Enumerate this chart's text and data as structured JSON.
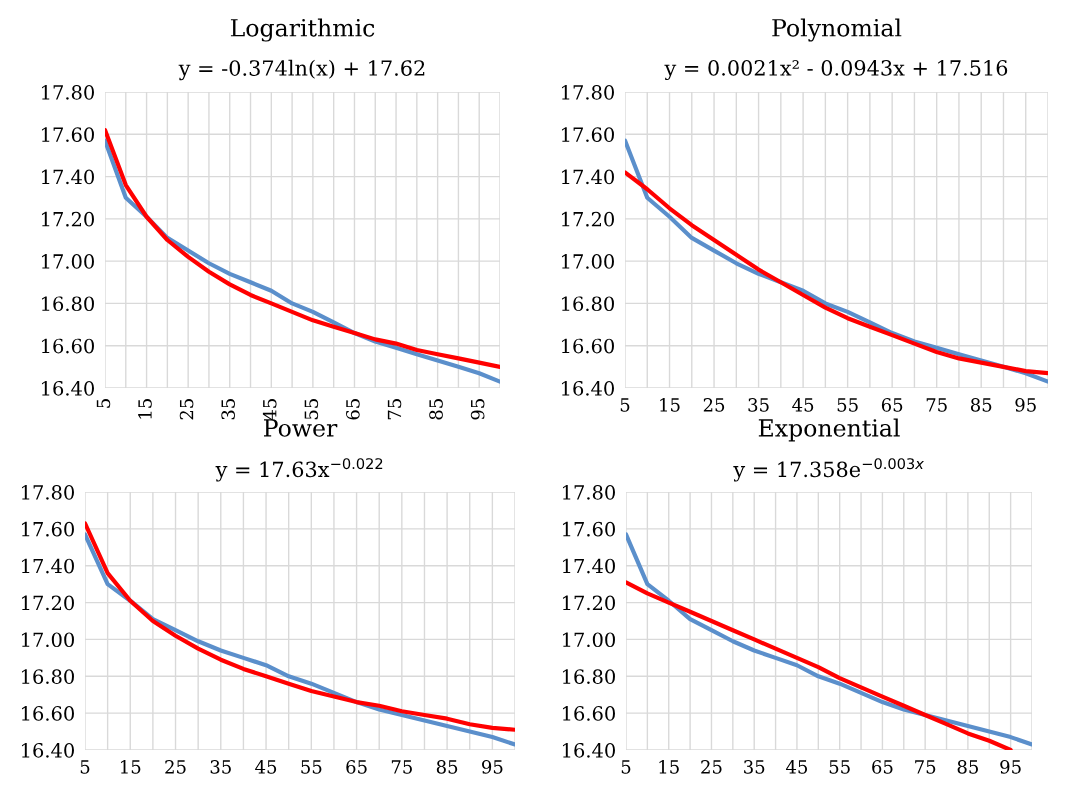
{
  "chart_data": [
    {
      "type": "line",
      "title": "Logarithmic",
      "subtitle": "y = -0.374ln(x) + 17.62",
      "categories": [
        "5",
        null,
        "15",
        null,
        "25",
        null,
        "35",
        null,
        "45",
        null,
        "55",
        null,
        "65",
        null,
        "75",
        null,
        "85",
        null,
        "95",
        null
      ],
      "ylim": [
        16.4,
        17.8
      ],
      "yticks": [
        {
          "value": 16.4,
          "label": "16.40"
        },
        {
          "value": 16.6,
          "label": "16.60"
        },
        {
          "value": 16.8,
          "label": "16.80"
        },
        {
          "value": 17.0,
          "label": "17.00"
        },
        {
          "value": 17.2,
          "label": "17.20"
        },
        {
          "value": 17.4,
          "label": "17.40"
        },
        {
          "value": 17.6,
          "label": "17.60"
        },
        {
          "value": 17.8,
          "label": "17.80"
        }
      ],
      "grid": true,
      "series": [
        {
          "color": "#5b8fcb",
          "values": [
            17.57,
            17.3,
            17.21,
            17.11,
            17.05,
            16.99,
            16.94,
            16.9,
            16.86,
            16.8,
            16.76,
            16.71,
            16.66,
            16.62,
            16.59,
            16.56,
            16.53,
            16.5,
            16.47,
            16.43
          ]
        },
        {
          "color": "#ff0000",
          "values": [
            17.62,
            17.36,
            17.21,
            17.1,
            17.02,
            16.95,
            16.89,
            16.84,
            16.8,
            16.76,
            16.72,
            16.69,
            16.66,
            16.63,
            16.61,
            16.58,
            16.56,
            16.54,
            16.52,
            16.5
          ]
        }
      ]
    },
    {
      "type": "line",
      "title": "Polynomial",
      "subtitle": "y = 0.0021x² - 0.0943x + 17.516",
      "categories": [
        "5",
        null,
        "15",
        null,
        "25",
        null,
        "35",
        null,
        "45",
        null,
        "55",
        null,
        "65",
        null,
        "75",
        null,
        "85",
        null,
        "95",
        null
      ],
      "ylim": [
        16.4,
        17.8
      ],
      "yticks": [
        {
          "value": 16.4,
          "label": "16.40"
        },
        {
          "value": 16.6,
          "label": "16.60"
        },
        {
          "value": 16.8,
          "label": "16.80"
        },
        {
          "value": 17.0,
          "label": "17.00"
        },
        {
          "value": 17.2,
          "label": "17.20"
        },
        {
          "value": 17.4,
          "label": "17.40"
        },
        {
          "value": 17.6,
          "label": "17.60"
        },
        {
          "value": 17.8,
          "label": "17.80"
        }
      ],
      "grid": true,
      "series": [
        {
          "color": "#5b8fcb",
          "values": [
            17.57,
            17.3,
            17.21,
            17.11,
            17.05,
            16.99,
            16.94,
            16.9,
            16.86,
            16.8,
            16.76,
            16.71,
            16.66,
            16.62,
            16.59,
            16.56,
            16.53,
            16.5,
            16.47,
            16.43
          ]
        },
        {
          "color": "#ff0000",
          "values": [
            17.42,
            17.34,
            17.25,
            17.17,
            17.1,
            17.03,
            16.96,
            16.9,
            16.84,
            16.78,
            16.73,
            16.69,
            16.65,
            16.61,
            16.57,
            16.54,
            16.52,
            16.5,
            16.48,
            16.47
          ]
        }
      ]
    },
    {
      "type": "line",
      "title": "Power",
      "subtitle": "y = 17.63x$^{−0.022}$",
      "categories": [
        "5",
        null,
        "15",
        null,
        "25",
        null,
        "35",
        null,
        "45",
        null,
        "55",
        null,
        "65",
        null,
        "75",
        null,
        "85",
        null,
        "95",
        null
      ],
      "ylim": [
        16.4,
        17.8
      ],
      "yticks": [
        {
          "value": 16.4,
          "label": "16.40"
        },
        {
          "value": 16.6,
          "label": "16.60"
        },
        {
          "value": 16.8,
          "label": "16.80"
        },
        {
          "value": 17.0,
          "label": "17.00"
        },
        {
          "value": 17.2,
          "label": "17.20"
        },
        {
          "value": 17.4,
          "label": "17.40"
        },
        {
          "value": 17.6,
          "label": "17.60"
        },
        {
          "value": 17.8,
          "label": "17.80"
        }
      ],
      "grid": true,
      "series": [
        {
          "color": "#5b8fcb",
          "values": [
            17.57,
            17.3,
            17.21,
            17.11,
            17.05,
            16.99,
            16.94,
            16.9,
            16.86,
            16.8,
            16.76,
            16.71,
            16.66,
            16.62,
            16.59,
            16.56,
            16.53,
            16.5,
            16.47,
            16.43
          ]
        },
        {
          "color": "#ff0000",
          "values": [
            17.63,
            17.36,
            17.21,
            17.1,
            17.02,
            16.95,
            16.89,
            16.84,
            16.8,
            16.76,
            16.72,
            16.69,
            16.66,
            16.64,
            16.61,
            16.59,
            16.57,
            16.54,
            16.52,
            16.51
          ]
        }
      ]
    },
    {
      "type": "line",
      "title": "Exponential",
      "subtitle": "y = 17.358e$^{−0.003x}$",
      "categories": [
        "5",
        null,
        "15",
        null,
        "25",
        null,
        "35",
        null,
        "45",
        null,
        "55",
        null,
        "65",
        null,
        "75",
        null,
        "85",
        null,
        "95",
        null
      ],
      "ylim": [
        16.4,
        17.8
      ],
      "yticks": [
        {
          "value": 16.4,
          "label": "16.40"
        },
        {
          "value": 16.6,
          "label": "16.60"
        },
        {
          "value": 16.8,
          "label": "16.80"
        },
        {
          "value": 17.0,
          "label": "17.00"
        },
        {
          "value": 17.2,
          "label": "17.20"
        },
        {
          "value": 17.4,
          "label": "17.40"
        },
        {
          "value": 17.6,
          "label": "17.60"
        },
        {
          "value": 17.8,
          "label": "17.80"
        }
      ],
      "grid": true,
      "series": [
        {
          "color": "#5b8fcb",
          "values": [
            17.57,
            17.3,
            17.21,
            17.11,
            17.05,
            16.99,
            16.94,
            16.9,
            16.86,
            16.8,
            16.76,
            16.71,
            16.66,
            16.62,
            16.59,
            16.56,
            16.53,
            16.5,
            16.47,
            16.43
          ]
        },
        {
          "color": "#ff0000",
          "values": [
            17.31,
            17.25,
            17.2,
            17.15,
            17.1,
            17.05,
            17.0,
            16.95,
            16.9,
            16.85,
            16.79,
            16.74,
            16.69,
            16.64,
            16.59,
            16.54,
            16.49,
            16.45,
            16.4,
            null
          ]
        }
      ]
    }
  ]
}
